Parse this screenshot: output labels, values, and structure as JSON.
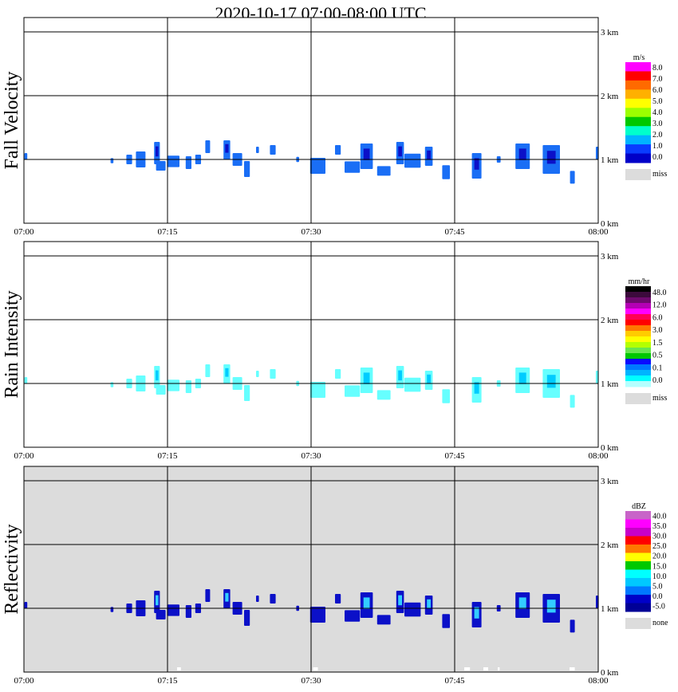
{
  "title": "2020-10-17   07:00-08:00 UTC",
  "x_ticks": [
    "07:00",
    "07:15",
    "07:30",
    "07:45",
    "08:00"
  ],
  "y_ticks": [
    "0 km",
    "1 km",
    "2 km",
    "3 km"
  ],
  "colors": {
    "fill_blue": "#1a6ef5",
    "dark_blue": "#0b10c8",
    "light_cyan": "#66ffff",
    "cyan": "#00e5ee",
    "miss_gray": "#dcdcdc",
    "panel_bg": "#ffffff",
    "grid": "#000000"
  },
  "chart_data": [
    {
      "type": "heatmap",
      "name": "Fall Velocity",
      "ylabel": "Fall Velocity",
      "xlim": [
        "07:00",
        "08:00"
      ],
      "ylim_km": [
        0,
        3.2
      ],
      "grid": true,
      "background": "none",
      "colorbar": {
        "unit": "m/s",
        "labels": [
          "8.0",
          "7.0",
          "6.0",
          "5.0",
          "4.0",
          "3.0",
          "2.0",
          "1.0",
          "0.0"
        ],
        "colors": [
          "#ff00ff",
          "#ff0000",
          "#ff6a00",
          "#ffb000",
          "#ffff00",
          "#9cff00",
          "#00c800",
          "#00ffcc",
          "#00b4ff",
          "#0a3cff",
          "#0000c8"
        ],
        "miss_label": "miss"
      }
    },
    {
      "type": "heatmap",
      "name": "Rain Intensity",
      "ylabel": "Rain Intensity",
      "xlim": [
        "07:00",
        "08:00"
      ],
      "ylim_km": [
        0,
        3.2
      ],
      "grid": true,
      "background": "none",
      "colorbar": {
        "unit": "mm/hr",
        "labels": [
          "48.0",
          "12.0",
          "6.0",
          "3.0",
          "1.5",
          "0.5",
          "0.1",
          "0.0"
        ],
        "colors": [
          "#000000",
          "#3c0a3c",
          "#6e0a6e",
          "#b400b4",
          "#ff00ff",
          "#ff0055",
          "#ff0000",
          "#ff7800",
          "#ffcc00",
          "#ffff00",
          "#b4ff00",
          "#66e650",
          "#00c800",
          "#0a0aff",
          "#0078ff",
          "#00b4ff",
          "#00ffff",
          "#b4ffff"
        ],
        "miss_label": "miss"
      }
    },
    {
      "type": "heatmap",
      "name": "Reflectivity",
      "ylabel": "Reflectivity",
      "xlim": [
        "07:00",
        "08:00"
      ],
      "ylim_km": [
        0,
        3.2
      ],
      "grid": true,
      "background": "gray",
      "colorbar": {
        "unit": "dBZ",
        "labels": [
          "40.0",
          "35.0",
          "30.0",
          "25.0",
          "20.0",
          "15.0",
          "10.0",
          "5.0",
          "0.0",
          "-5.0"
        ],
        "colors": [
          "#c864c8",
          "#ff00ff",
          "#c800c8",
          "#ff0000",
          "#ff7800",
          "#ffff00",
          "#00c800",
          "#00ffff",
          "#00c8ff",
          "#0078ff",
          "#0000c8",
          "#000096"
        ],
        "miss_label": "none"
      }
    }
  ]
}
